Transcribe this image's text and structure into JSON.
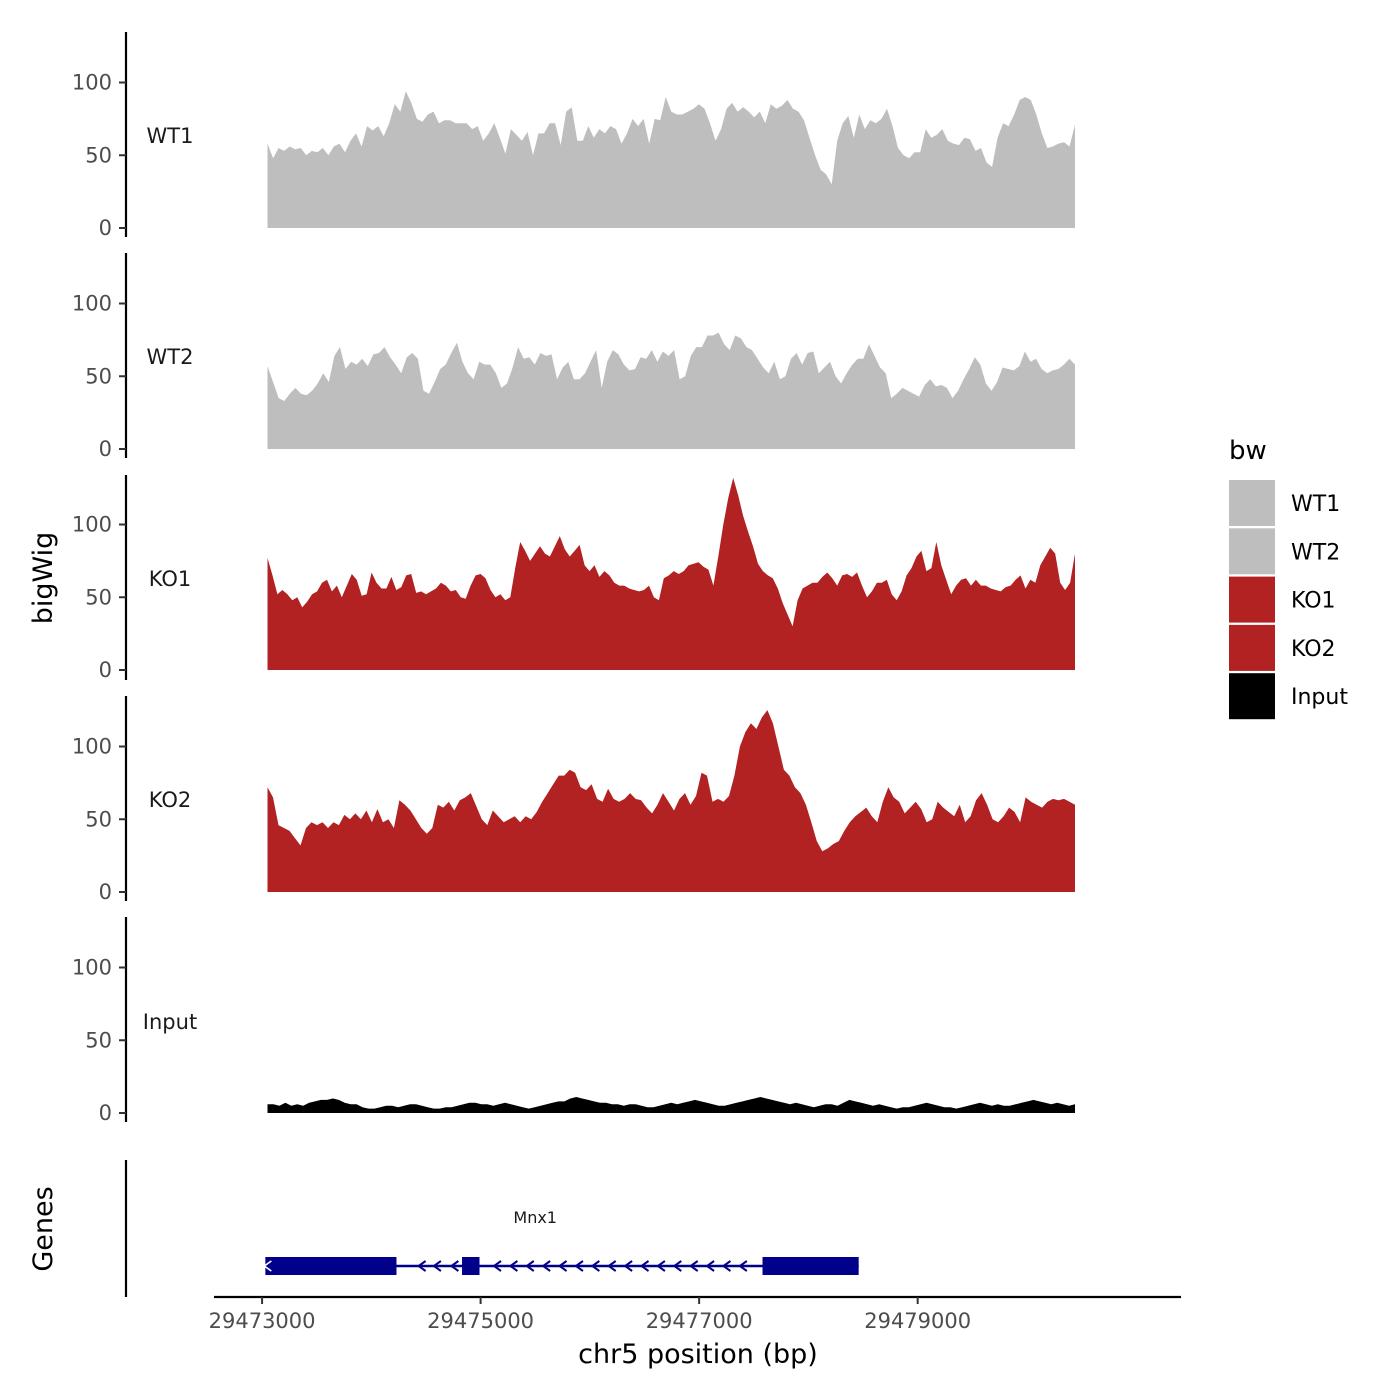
{
  "chart_data": {
    "type": "area",
    "chromosome": "chr5",
    "xlabel": "chr5 position (bp)",
    "ylabel": "bigWig",
    "genes_label": "Genes",
    "xlim": [
      29472560,
      29481410
    ],
    "x_ticks": [
      29473000,
      29475000,
      29477000,
      29479000
    ],
    "x_tick_labels": [
      "29473000",
      "29475000",
      "29477000",
      "29479000"
    ],
    "ylim": [
      0,
      135
    ],
    "y_ticks": [
      0,
      50,
      100
    ],
    "y_tick_labels": [
      "0",
      "50",
      "100"
    ],
    "x_start": 29473050,
    "x_end": 29480440,
    "series": [
      {
        "name": "WT1",
        "color": "#bebebe",
        "values": [
          58,
          48,
          55,
          53,
          56,
          54,
          55,
          50,
          53,
          52,
          55,
          50,
          56,
          58,
          52,
          60,
          65,
          56,
          70,
          67,
          70,
          63,
          72,
          85,
          80,
          94,
          86,
          75,
          73,
          78,
          80,
          72,
          74,
          74,
          72,
          72,
          72,
          68,
          70,
          60,
          65,
          72,
          62,
          51,
          68,
          64,
          60,
          66,
          50,
          65,
          65,
          72,
          72,
          57,
          80,
          83,
          60,
          60,
          70,
          62,
          68,
          65,
          70,
          68,
          58,
          65,
          75,
          70,
          75,
          58,
          75,
          74,
          90,
          80,
          78,
          78,
          80,
          82,
          85,
          82,
          72,
          60,
          68,
          82,
          86,
          80,
          83,
          80,
          76,
          80,
          72,
          85,
          82,
          84,
          88,
          82,
          80,
          74,
          62,
          50,
          40,
          37,
          30,
          60,
          72,
          77,
          62,
          78,
          68,
          74,
          72,
          75,
          82,
          70,
          55,
          50,
          48,
          52,
          52,
          68,
          62,
          64,
          68,
          60,
          58,
          57,
          62,
          61,
          53,
          55,
          45,
          42,
          62,
          72,
          70,
          78,
          88,
          90,
          88,
          78,
          65,
          55,
          56,
          58,
          59,
          56,
          71
        ]
      },
      {
        "name": "WT2",
        "color": "#bebebe",
        "values": [
          57,
          46,
          35,
          33,
          38,
          42,
          38,
          37,
          40,
          45,
          52,
          46,
          64,
          70,
          55,
          60,
          58,
          62,
          57,
          65,
          66,
          70,
          63,
          58,
          52,
          63,
          66,
          62,
          40,
          38,
          46,
          55,
          58,
          66,
          73,
          60,
          52,
          48,
          60,
          58,
          58,
          52,
          42,
          45,
          56,
          70,
          62,
          63,
          58,
          66,
          64,
          65,
          48,
          56,
          60,
          48,
          48,
          52,
          60,
          68,
          42,
          60,
          68,
          65,
          58,
          54,
          55,
          63,
          62,
          68,
          60,
          67,
          64,
          68,
          48,
          50,
          64,
          70,
          70,
          78,
          78,
          80,
          72,
          68,
          78,
          76,
          70,
          68,
          62,
          56,
          52,
          60,
          48,
          50,
          62,
          66,
          58,
          66,
          67,
          52,
          56,
          60,
          50,
          45,
          52,
          58,
          62,
          62,
          72,
          64,
          56,
          52,
          35,
          38,
          42,
          40,
          38,
          36,
          44,
          48,
          43,
          44,
          42,
          35,
          40,
          48,
          55,
          63,
          58,
          45,
          40,
          46,
          56,
          55,
          54,
          57,
          67,
          60,
          62,
          55,
          52,
          54,
          55,
          58,
          62,
          58
        ]
      },
      {
        "name": "KO1",
        "color": "#b22222",
        "values": [
          77,
          65,
          52,
          55,
          52,
          48,
          50,
          43,
          47,
          52,
          54,
          60,
          62,
          54,
          58,
          50,
          58,
          66,
          62,
          51,
          52,
          67,
          60,
          56,
          56,
          64,
          55,
          57,
          65,
          66,
          53,
          54,
          52,
          54,
          56,
          60,
          58,
          54,
          55,
          50,
          49,
          58,
          65,
          66,
          63,
          55,
          50,
          52,
          48,
          50,
          70,
          88,
          82,
          75,
          80,
          85,
          80,
          78,
          85,
          92,
          83,
          78,
          82,
          86,
          72,
          68,
          72,
          64,
          68,
          65,
          60,
          58,
          58,
          56,
          55,
          54,
          55,
          58,
          50,
          48,
          63,
          65,
          68,
          66,
          68,
          72,
          73,
          74,
          71,
          69,
          58,
          78,
          100,
          118,
          132,
          120,
          106,
          95,
          85,
          73,
          68,
          65,
          63,
          56,
          46,
          38,
          30,
          48,
          56,
          58,
          60,
          60,
          64,
          67,
          63,
          58,
          65,
          66,
          64,
          67,
          58,
          50,
          54,
          60,
          60,
          62,
          52,
          48,
          54,
          65,
          70,
          78,
          82,
          68,
          70,
          88,
          72,
          62,
          52,
          58,
          62,
          63,
          58,
          62,
          58,
          58,
          56,
          55,
          54,
          57,
          58,
          62,
          65,
          56,
          62,
          60,
          72,
          78,
          84,
          80,
          60,
          55,
          60,
          80
        ]
      },
      {
        "name": "KO2",
        "color": "#b22222",
        "values": [
          72,
          65,
          46,
          44,
          42,
          37,
          32,
          44,
          48,
          46,
          48,
          44,
          48,
          46,
          53,
          50,
          54,
          50,
          56,
          48,
          57,
          48,
          50,
          44,
          63,
          60,
          56,
          50,
          44,
          40,
          44,
          60,
          58,
          62,
          56,
          63,
          65,
          68,
          59,
          50,
          46,
          56,
          52,
          48,
          50,
          52,
          48,
          52,
          50,
          55,
          62,
          68,
          74,
          80,
          80,
          84,
          82,
          72,
          70,
          74,
          64,
          62,
          71,
          64,
          62,
          64,
          68,
          64,
          63,
          58,
          54,
          60,
          68,
          62,
          56,
          64,
          68,
          60,
          66,
          82,
          80,
          62,
          64,
          62,
          66,
          80,
          100,
          110,
          116,
          112,
          120,
          125,
          116,
          100,
          84,
          80,
          72,
          68,
          60,
          48,
          35,
          28,
          30,
          33,
          35,
          42,
          48,
          52,
          55,
          58,
          52,
          48,
          62,
          72,
          65,
          62,
          54,
          58,
          62,
          57,
          48,
          50,
          62,
          58,
          55,
          52,
          60,
          48,
          52,
          63,
          68,
          60,
          50,
          48,
          52,
          58,
          55,
          48,
          65,
          62,
          60,
          58,
          62,
          64,
          63,
          64,
          62,
          60
        ]
      },
      {
        "name": "Input",
        "color": "#000000",
        "values": [
          6,
          6,
          5,
          7,
          5,
          6,
          5,
          7,
          8,
          9,
          9,
          10,
          9,
          7,
          6,
          6,
          4,
          3,
          3,
          4,
          5,
          5,
          4,
          5,
          6,
          6,
          5,
          4,
          3,
          3,
          4,
          4,
          5,
          6,
          7,
          7,
          6,
          6,
          5,
          6,
          7,
          6,
          5,
          4,
          3,
          4,
          5,
          6,
          7,
          8,
          8,
          10,
          11,
          10,
          9,
          8,
          7,
          7,
          6,
          6,
          5,
          6,
          6,
          5,
          4,
          4,
          5,
          6,
          7,
          6,
          7,
          8,
          9,
          8,
          7,
          6,
          5,
          5,
          6,
          7,
          8,
          9,
          10,
          11,
          10,
          9,
          8,
          7,
          6,
          7,
          6,
          5,
          4,
          5,
          6,
          6,
          5,
          7,
          9,
          8,
          7,
          6,
          5,
          6,
          5,
          4,
          3,
          4,
          4,
          5,
          6,
          7,
          6,
          5,
          4,
          4,
          3,
          4,
          5,
          6,
          7,
          6,
          5,
          6,
          5,
          5,
          6,
          7,
          8,
          9,
          8,
          7,
          6,
          7,
          6,
          5,
          6
        ]
      }
    ],
    "legend": {
      "title": "bw",
      "position": "right",
      "items": [
        {
          "label": "WT1",
          "color": "#bebebe"
        },
        {
          "label": "WT2",
          "color": "#bebebe"
        },
        {
          "label": "KO1",
          "color": "#b22222"
        },
        {
          "label": "KO2",
          "color": "#b22222"
        },
        {
          "label": "Input",
          "color": "#000000"
        }
      ]
    },
    "gene": {
      "name": "Mnx1",
      "color": "#00008b",
      "strand": "-",
      "start": 29473030,
      "end": 29478460,
      "exons": [
        {
          "start": 29473030,
          "end": 29474230
        },
        {
          "start": 29474830,
          "end": 29474990
        },
        {
          "start": 29477580,
          "end": 29478460
        }
      ],
      "arrow_positions": [
        29474460,
        29474600,
        29474760,
        29475150,
        29475300,
        29475450,
        29475600,
        29475750,
        29475900,
        29476050,
        29476200,
        29476350,
        29476500,
        29476650,
        29476800,
        29476950,
        29477100,
        29477250,
        29477400
      ]
    }
  }
}
